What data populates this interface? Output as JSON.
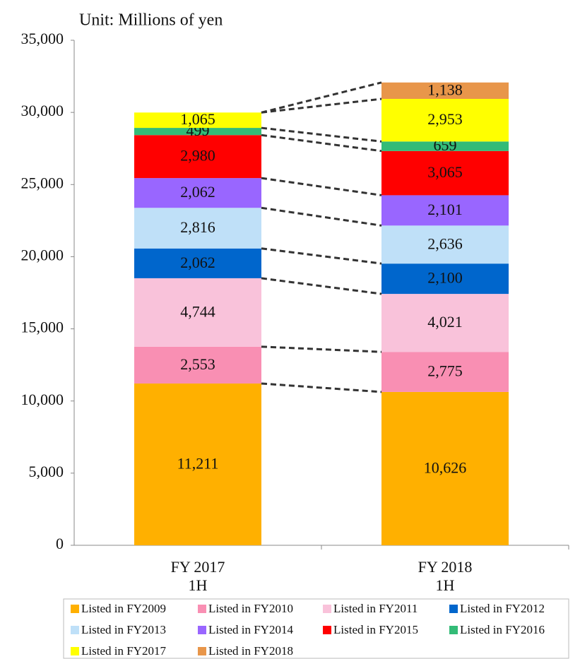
{
  "chart_data": {
    "type": "stacked_bar",
    "title": "Unit: Millions of yen",
    "categories": [
      "FY 2017\n1H",
      "FY 2018\n1H"
    ],
    "ylim": [
      0,
      35000
    ],
    "yticks": [
      0,
      {
        "value": 5000,
        "label": "5,000"
      },
      {
        "value": 10000,
        "label": "10,000"
      },
      {
        "value": 15000,
        "label": "15,000"
      },
      {
        "value": 20000,
        "label": "20,000"
      },
      {
        "value": 25000,
        "label": "25,000"
      },
      {
        "value": 30000,
        "label": "30,000"
      },
      {
        "value": 35000,
        "label": "35,000"
      }
    ],
    "grid": false,
    "legend": "bottom",
    "series": [
      {
        "name": "Listed in FY2009",
        "color": "#ffb000",
        "values": [
          11211,
          10626
        ],
        "value_labels": [
          "11,211",
          "10,626"
        ]
      },
      {
        "name": "Listed in FY2010",
        "color": "#f98fb3",
        "values": [
          2553,
          2775
        ],
        "value_labels": [
          "2,553",
          "2,775"
        ]
      },
      {
        "name": "Listed in FY2011",
        "color": "#f9c2da",
        "values": [
          4744,
          4021
        ],
        "value_labels": [
          "4,744",
          "4,021"
        ]
      },
      {
        "name": "Listed in FY2012",
        "color": "#0066cc",
        "values": [
          2062,
          2100
        ],
        "value_labels": [
          "2,062",
          "2,100"
        ]
      },
      {
        "name": "Listed in FY2013",
        "color": "#bfe0f8",
        "values": [
          2816,
          2636
        ],
        "value_labels": [
          "2,816",
          "2,636"
        ]
      },
      {
        "name": "Listed in FY2014",
        "color": "#9966ff",
        "values": [
          2062,
          2101
        ],
        "value_labels": [
          "2,062",
          "2,101"
        ]
      },
      {
        "name": "Listed in FY2015",
        "color": "#ff0000",
        "values": [
          2980,
          3065
        ],
        "value_labels": [
          "2,980",
          "3,065"
        ]
      },
      {
        "name": "Listed in FY2016",
        "color": "#33bb77",
        "values": [
          499,
          659
        ],
        "value_labels": [
          "499",
          "659"
        ]
      },
      {
        "name": "Listed in FY2017",
        "color": "#ffff00",
        "values": [
          1065,
          2953
        ],
        "value_labels": [
          "1,065",
          "2,953"
        ]
      },
      {
        "name": "Listed in FY2018",
        "color": "#e8964a",
        "values": [
          null,
          1138
        ],
        "value_labels": [
          null,
          "1,138"
        ]
      }
    ]
  }
}
